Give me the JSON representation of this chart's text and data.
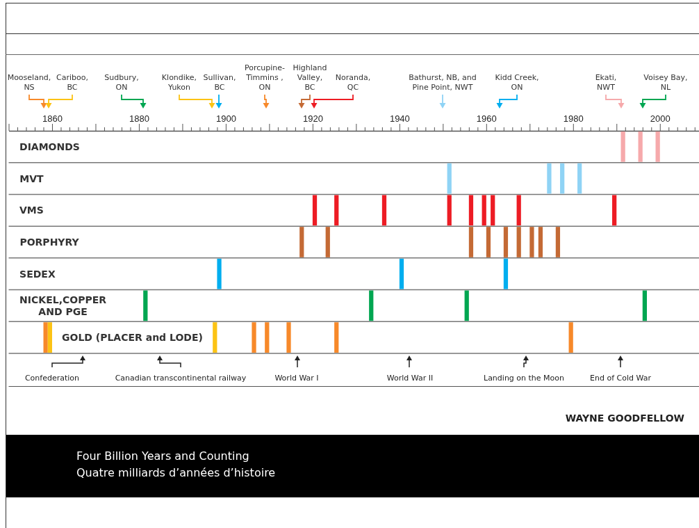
{
  "chart_data": {
    "type": "bar",
    "orientation": "horizontal",
    "categories": [
      "DIAMONDS",
      "MVT",
      "VMS",
      "PORPHYRY",
      "SEDEX",
      "NICKEL,COPPER\nAND PGE",
      "GOLD (PLACER and LODE)"
    ],
    "xlim": [
      1850,
      2009
    ],
    "xticks": [
      {
        "value": 1850,
        "label": null
      },
      {
        "value": 1852,
        "label": null
      },
      {
        "value": 1854,
        "label": null
      },
      {
        "value": 1856,
        "label": null
      },
      {
        "value": 1858,
        "label": null
      },
      1860,
      {
        "value": 1862,
        "label": null
      },
      {
        "value": 1864,
        "label": null
      },
      {
        "value": 1866,
        "label": null
      },
      {
        "value": 1868,
        "label": null
      },
      {
        "value": 1870,
        "label": null
      },
      {
        "value": 1872,
        "label": null
      },
      {
        "value": 1874,
        "label": null
      },
      {
        "value": 1876,
        "label": null
      },
      {
        "value": 1878,
        "label": null
      },
      1880,
      {
        "value": 1882,
        "label": null
      },
      {
        "value": 1884,
        "label": null
      },
      {
        "value": 1886,
        "label": null
      },
      {
        "value": 1888,
        "label": null
      },
      {
        "value": 1890,
        "label": null
      },
      {
        "value": 1892,
        "label": null
      },
      {
        "value": 1894,
        "label": null
      },
      {
        "value": 1896,
        "label": null
      },
      {
        "value": 1898,
        "label": null
      },
      1900,
      {
        "value": 1902,
        "label": null
      },
      {
        "value": 1904,
        "label": null
      },
      {
        "value": 1906,
        "label": null
      },
      {
        "value": 1908,
        "label": null
      },
      {
        "value": 1910,
        "label": null
      },
      {
        "value": 1912,
        "label": null
      },
      {
        "value": 1914,
        "label": null
      },
      {
        "value": 1916,
        "label": null
      },
      {
        "value": 1918,
        "label": null
      },
      1920,
      {
        "value": 1922,
        "label": null
      },
      {
        "value": 1924,
        "label": null
      },
      {
        "value": 1926,
        "label": null
      },
      {
        "value": 1928,
        "label": null
      },
      {
        "value": 1930,
        "label": null
      },
      {
        "value": 1932,
        "label": null
      },
      {
        "value": 1934,
        "label": null
      },
      {
        "value": 1936,
        "label": null
      },
      {
        "value": 1938,
        "label": null
      },
      1940,
      {
        "value": 1942,
        "label": null
      },
      {
        "value": 1944,
        "label": null
      },
      {
        "value": 1946,
        "label": null
      },
      {
        "value": 1948,
        "label": null
      },
      {
        "value": 1950,
        "label": null
      },
      {
        "value": 1952,
        "label": null
      },
      {
        "value": 1954,
        "label": null
      },
      {
        "value": 1956,
        "label": null
      },
      {
        "value": 1958,
        "label": null
      },
      1960,
      {
        "value": 1962,
        "label": null
      },
      {
        "value": 1964,
        "label": null
      },
      {
        "value": 1966,
        "label": null
      },
      {
        "value": 1968,
        "label": null
      },
      {
        "value": 1970,
        "label": null
      },
      {
        "value": 1972,
        "label": null
      },
      {
        "value": 1974,
        "label": null
      },
      {
        "value": 1976,
        "label": null
      },
      {
        "value": 1978,
        "label": null
      },
      1980,
      {
        "value": 1982,
        "label": null
      },
      {
        "value": 1984,
        "label": null
      },
      {
        "value": 1986,
        "label": null
      },
      {
        "value": 1988,
        "label": null
      },
      {
        "value": 1990,
        "label": null
      },
      {
        "value": 1992,
        "label": null
      },
      {
        "value": 1994,
        "label": null
      },
      {
        "value": 1996,
        "label": null
      },
      {
        "value": 1998,
        "label": null
      },
      2000,
      {
        "value": 2002,
        "label": null
      },
      {
        "value": 2004,
        "label": null
      },
      {
        "value": 2006,
        "label": null
      },
      {
        "value": 2008,
        "label": null
      }
    ],
    "series": [
      {
        "base": [
          1991,
          1951,
          1920,
          1917,
          1898,
          1881,
          1858
        ],
        "values": [
          1,
          1,
          1,
          1,
          1,
          1,
          1
        ],
        "colors": [
          "#f6a9ab",
          "#8fd3f5",
          "#ed1c24",
          "#c46a35",
          "#00aeef",
          "#00a651",
          "#f7892a"
        ]
      },
      {
        "base": [
          1995,
          1974,
          1925,
          1923,
          1940,
          1933,
          1859
        ],
        "values": [
          1,
          1,
          1,
          1,
          1,
          1,
          1
        ],
        "colors": [
          "#f6a9ab",
          "#8fd3f5",
          "#ed1c24",
          "#c46a35",
          "#00aeef",
          "#00a651",
          "#fcc314"
        ]
      },
      {
        "base": [
          1999,
          1977,
          1936,
          1956,
          1964,
          1955,
          1897
        ],
        "values": [
          1,
          1,
          1,
          1,
          1,
          1,
          1
        ],
        "colors": [
          "#f6a9ab",
          "#8fd3f5",
          "#ed1c24",
          "#c46a35",
          "#00aeef",
          "#00a651",
          "#fcc314"
        ]
      },
      {
        "base": [
          null,
          1981,
          1951,
          1960,
          null,
          1996,
          1906
        ],
        "values": [
          null,
          1,
          1,
          1,
          null,
          1,
          1
        ],
        "colors": [
          null,
          "#8fd3f5",
          "#ed1c24",
          "#c46a35",
          null,
          "#00a651",
          "#f7892a"
        ]
      },
      {
        "base": [
          null,
          null,
          1956,
          1964,
          null,
          null,
          1909
        ],
        "values": [
          null,
          null,
          1,
          1,
          null,
          null,
          1
        ],
        "colors": [
          null,
          null,
          "#ed1c24",
          "#c46a35",
          null,
          null,
          "#f7892a"
        ]
      },
      {
        "base": [
          null,
          null,
          1959,
          1967,
          null,
          null,
          1914
        ],
        "values": [
          null,
          null,
          1,
          1,
          null,
          null,
          1
        ],
        "colors": [
          null,
          null,
          "#ed1c24",
          "#c46a35",
          null,
          null,
          "#f7892a"
        ]
      },
      {
        "base": [
          null,
          null,
          1961,
          1970,
          null,
          null,
          1925
        ],
        "values": [
          null,
          null,
          1,
          1,
          null,
          null,
          1
        ],
        "colors": [
          null,
          null,
          "#ed1c24",
          "#c46a35",
          null,
          null,
          "#f7892a"
        ]
      },
      {
        "base": [
          null,
          null,
          1967,
          1972,
          null,
          null,
          1979
        ],
        "values": [
          null,
          null,
          1,
          1,
          null,
          null,
          1
        ],
        "colors": [
          null,
          null,
          "#ed1c24",
          "#c46a35",
          null,
          null,
          "#f7892a"
        ]
      },
      {
        "base": [
          null,
          null,
          1989,
          1976,
          null,
          null,
          null
        ],
        "values": [
          null,
          null,
          1,
          1,
          null,
          null,
          null
        ],
        "colors": [
          null,
          null,
          "#ed1c24",
          "#c46a35",
          null,
          null,
          null
        ]
      }
    ],
    "annotations": [
      "Mooseland,\nNS",
      "Cariboo,\nBC",
      "Sudbury,\nON",
      "Klondike,\nYukon",
      "Sullivan,\nBC",
      "Porcupine-\nTimmins ,\nON",
      "Highland\nValley,\nBC",
      "Noranda,\nQC",
      "Bathurst, NB, and\nPine Point, NWT",
      "Kidd Creek,\nON",
      "Ekati,\nNWT",
      "Voisey Bay,\nNL",
      "Confederation",
      "Canadian transcontinental railway",
      "World War I",
      "World War II",
      "Landing on the Moon",
      "End of Cold War",
      "WAYNE GOODFELLOW",
      "Four Billion Years and Counting",
      "Quatre milliards d’années d’histoire"
    ]
  }
}
